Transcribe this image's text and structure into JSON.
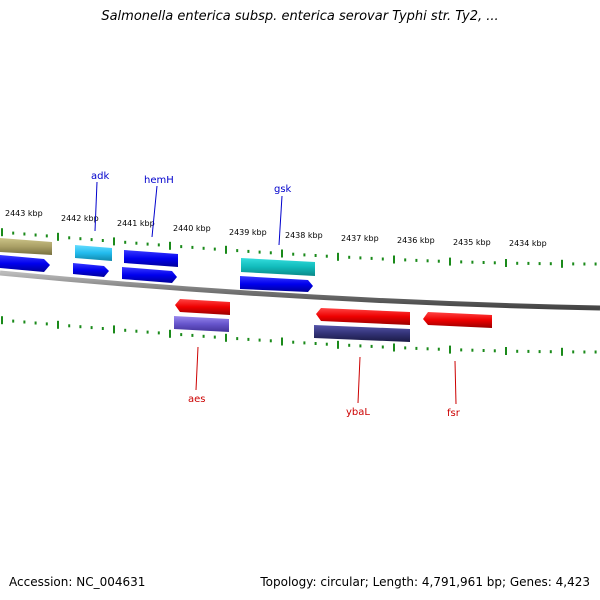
{
  "title": "Salmonella enterica subsp. enterica serovar Typhi str. Ty2, ...",
  "accession_label": "Accession: NC_004631",
  "topology_label": "Topology: circular; Length: 4,791,961 bp; Genes: 4,423",
  "kbp_labels": [
    "2443 kbp",
    "2442 kbp",
    "2441 kbp",
    "2440 kbp",
    "2439 kbp",
    "2438 kbp",
    "2437 kbp",
    "2436 kbp",
    "2435 kbp",
    "2434 kbp"
  ],
  "gene_labels": {
    "adk": "adk",
    "hemH": "hemH",
    "gsk": "gsk",
    "aes": "aes",
    "ybaL": "ybaL",
    "fsr": "fsr"
  },
  "colors": {
    "forward_label": "#0000cc",
    "reverse_label": "#cc0000",
    "tick": "#1a8a1a",
    "backbone": "#888888",
    "gene_blue": "#0000ee",
    "gene_cyan": "#22bbdd",
    "gene_teal": "#11bbbb",
    "gene_red": "#ee0000",
    "gene_violet": "#6655cc",
    "gene_navy": "#333377",
    "gene_olive": "#aaa066"
  }
}
